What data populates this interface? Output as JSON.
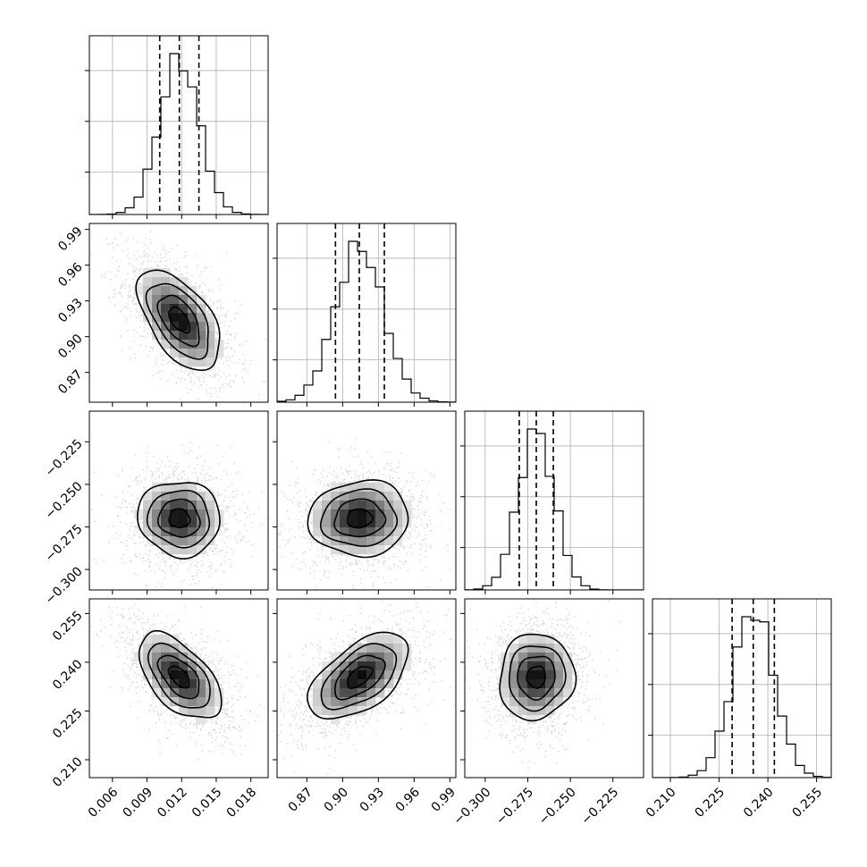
{
  "chart_data": {
    "type": "corner",
    "title": "",
    "parameters": [
      {
        "range": [
          0.004,
          0.0195
        ],
        "ticks": [
          "0.006",
          "0.009",
          "0.012",
          "0.015",
          "0.018"
        ],
        "tick_values": [
          0.006,
          0.009,
          0.012,
          0.015,
          0.018
        ],
        "mean": 0.0118,
        "std": 0.0017,
        "quantiles": [
          0.0101,
          0.0118,
          0.0135
        ]
      },
      {
        "range": [
          0.845,
          0.995
        ],
        "ticks": [
          "0.87",
          "0.90",
          "0.93",
          "0.96",
          "0.99"
        ],
        "tick_values": [
          0.87,
          0.9,
          0.93,
          0.96,
          0.99
        ],
        "mean": 0.914,
        "std": 0.02,
        "quantiles": [
          0.894,
          0.914,
          0.935
        ]
      },
      {
        "range": [
          -0.312,
          -0.207
        ],
        "ticks": [
          "−0.300",
          "−0.275",
          "−0.250",
          "−0.225"
        ],
        "tick_values": [
          -0.3,
          -0.275,
          -0.25,
          -0.225
        ],
        "mean": -0.27,
        "std": 0.0105,
        "quantiles": [
          -0.28,
          -0.27,
          -0.26
        ]
      },
      {
        "range": [
          0.2045,
          0.2595
        ],
        "ticks": [
          "0.210",
          "0.225",
          "0.240",
          "0.255"
        ],
        "tick_values": [
          0.21,
          0.225,
          0.24,
          0.255
        ],
        "mean": 0.2355,
        "std": 0.0063,
        "quantiles": [
          0.229,
          0.2355,
          0.242
        ]
      }
    ],
    "correlations": [
      {
        "row": 1,
        "col": 0,
        "rho": -0.55
      },
      {
        "row": 2,
        "col": 0,
        "rho": -0.05
      },
      {
        "row": 2,
        "col": 1,
        "rho": 0.05
      },
      {
        "row": 3,
        "col": 0,
        "rho": -0.55
      },
      {
        "row": 3,
        "col": 1,
        "rho": 0.55
      },
      {
        "row": 3,
        "col": 2,
        "rho": 0.05
      }
    ],
    "contour_levels_sigma": [
      0.5,
      1.0,
      1.5,
      2.0
    ],
    "histogram_bins": 20,
    "grid": true,
    "legend": "none"
  }
}
